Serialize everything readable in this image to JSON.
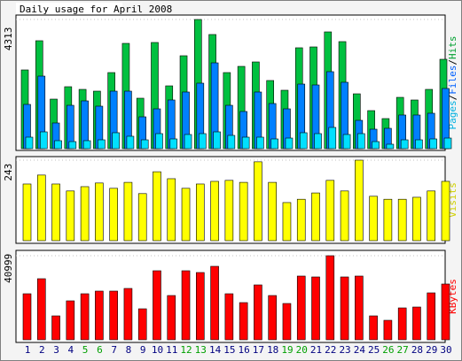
{
  "chart_data": [
    {
      "type": "bar",
      "title": "Daily usage for April 2008",
      "legend_separator": "/",
      "ylim": [
        0,
        4313
      ],
      "yticks": [
        4313
      ],
      "series": [
        {
          "name": "Hits",
          "color": "#00c040",
          "values": [
            2629,
            3604,
            1654,
            2068,
            1979,
            1920,
            2540,
            3515,
            1684,
            3545,
            2097,
            3102,
            4313,
            3811,
            2540,
            2747,
            2895,
            2275,
            1950,
            3368,
            3397,
            3899,
            3574,
            1831,
            1270,
            1004,
            1713,
            1625,
            1979,
            2984
          ]
        },
        {
          "name": "Files",
          "color": "#0080ff",
          "values": [
            1477,
            2422,
            857,
            1447,
            1595,
            1418,
            1920,
            1920,
            1063,
            1329,
            1625,
            1891,
            2186,
            2865,
            1447,
            1241,
            1891,
            1507,
            1329,
            2156,
            2127,
            2570,
            2216,
            945,
            650,
            679,
            1123,
            1123,
            1182,
            2009
          ]
        },
        {
          "name": "Pages",
          "color": "#00e0ff",
          "values": [
            384,
            561,
            266,
            236,
            266,
            295,
            532,
            414,
            295,
            502,
            325,
            473,
            502,
            561,
            443,
            384,
            384,
            325,
            354,
            532,
            502,
            709,
            473,
            502,
            236,
            148,
            295,
            295,
            325,
            354
          ]
        }
      ]
    },
    {
      "type": "bar",
      "ylim": [
        0,
        243
      ],
      "yticks": [
        243
      ],
      "series": [
        {
          "name": "Visits",
          "color": "#ffff00",
          "values": [
            171,
            198,
            171,
            150,
            163,
            174,
            158,
            176,
            142,
            208,
            187,
            158,
            171,
            179,
            182,
            176,
            238,
            176,
            115,
            125,
            144,
            182,
            150,
            243,
            134,
            125,
            125,
            131,
            150,
            179
          ]
        }
      ]
    },
    {
      "type": "bar",
      "ylim": [
        0,
        40999
      ],
      "yticks": [
        40999
      ],
      "categories": [
        "1",
        "2",
        "3",
        "4",
        "5",
        "6",
        "7",
        "8",
        "9",
        "10",
        "11",
        "12",
        "13",
        "14",
        "15",
        "16",
        "17",
        "18",
        "19",
        "20",
        "21",
        "22",
        "23",
        "24",
        "25",
        "26",
        "27",
        "28",
        "29",
        "30"
      ],
      "category_colors": [
        "#000080",
        "#000080",
        "#000080",
        "#000080",
        "#00a000",
        "#00a000",
        "#000080",
        "#000080",
        "#000080",
        "#000080",
        "#000080",
        "#00a000",
        "#00a000",
        "#000080",
        "#000080",
        "#000080",
        "#000080",
        "#000080",
        "#00a000",
        "#00a000",
        "#000080",
        "#000080",
        "#000080",
        "#000080",
        "#000080",
        "#00a000",
        "#00a000",
        "#000080",
        "#000080",
        "#000080"
      ],
      "series": [
        {
          "name": "KBytes",
          "color": "#ff0000",
          "values": [
            22443,
            29780,
            11653,
            18990,
            22443,
            23738,
            23738,
            25033,
            15106,
            33665,
            21580,
            33665,
            32802,
            35823,
            22443,
            18127,
            26759,
            21580,
            17696,
            31075,
            30644,
            40999,
            30644,
            31075,
            11653,
            9495,
            15538,
            15969,
            22875,
            27191
          ]
        }
      ]
    }
  ]
}
